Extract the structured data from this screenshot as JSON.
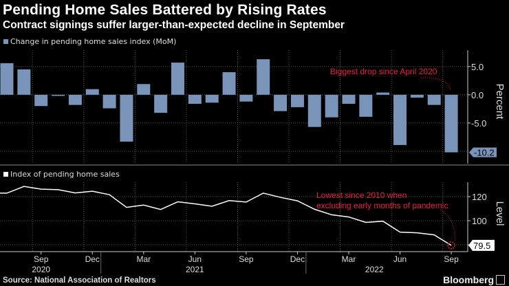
{
  "header": {
    "title": "Pending Home Sales Battered by Rising Rates",
    "subtitle": "Contract signings suffer larger-than-expected decline in September"
  },
  "footer": {
    "source": "Source: National Association of Realtors",
    "brand": "Bloomberg"
  },
  "colors": {
    "bar": "#7a93b8",
    "line": "#ffffff",
    "annotation": "#e3213f",
    "grid": "#555555"
  },
  "chart_data": [
    {
      "type": "bar",
      "title": "Change in pending home sales index (MoM)",
      "ylabel": "Percent",
      "ylim": [
        -12.2,
        7.9
      ],
      "yticks": [
        5.0,
        0.0,
        -5.0
      ],
      "ytick_labels": [
        "5.0",
        "0.0",
        "-5.0"
      ],
      "categories": [
        "Jul 2020",
        "Aug 2020",
        "Sep 2020",
        "Oct 2020",
        "Nov 2020",
        "Dec 2020",
        "Jan 2021",
        "Feb 2021",
        "Mar 2021",
        "Apr 2021",
        "May 2021",
        "Jun 2021",
        "Jul 2021",
        "Aug 2021",
        "Sep 2021",
        "Oct 2021",
        "Nov 2021",
        "Dec 2021",
        "Jan 2022",
        "Feb 2022",
        "Mar 2022",
        "Apr 2022",
        "May 2022",
        "Jun 2022",
        "Jul 2022",
        "Aug 2022",
        "Sep 2022"
      ],
      "values": [
        5.6,
        4.5,
        -2.0,
        -0.2,
        -1.8,
        1.0,
        -2.4,
        -8.3,
        1.9,
        -3.2,
        5.7,
        -1.6,
        -1.4,
        4.0,
        -1.2,
        6.3,
        -2.9,
        -2.2,
        -5.7,
        -4.0,
        -1.6,
        -3.9,
        0.4,
        -8.9,
        -0.5,
        -1.8,
        -10.2
      ],
      "last_value_label": "-10.2",
      "annotation": "Biggest drop since April 2020",
      "grid": true
    },
    {
      "type": "line",
      "title": "Index of pending home sales",
      "ylabel": "Level",
      "ylim": [
        76,
        132
      ],
      "yticks": [
        120,
        100,
        80
      ],
      "ytick_labels": [
        "120",
        "100",
        ""
      ],
      "values": [
        122.9,
        128.5,
        126.2,
        125.8,
        123.1,
        124.5,
        121.6,
        111.1,
        113.0,
        109.3,
        115.7,
        114.0,
        112.0,
        116.7,
        115.5,
        122.9,
        119.4,
        116.5,
        109.5,
        104.9,
        103.1,
        98.6,
        99.6,
        90.5,
        89.9,
        88.2,
        79.5
      ],
      "last_value_label": "79.5",
      "annotation": [
        "Lowest since 2010 when",
        "excluding early months of pandemic"
      ],
      "x_ticks": [
        {
          "index": 2,
          "label": "Sep"
        },
        {
          "index": 5,
          "label": "Dec"
        },
        {
          "index": 8,
          "label": "Mar"
        },
        {
          "index": 11,
          "label": "Jun"
        },
        {
          "index": 14,
          "label": "Sep"
        },
        {
          "index": 17,
          "label": "Dec"
        },
        {
          "index": 20,
          "label": "Mar"
        },
        {
          "index": 23,
          "label": "Jun"
        },
        {
          "index": 26,
          "label": "Sep"
        }
      ],
      "years": [
        {
          "index": 2,
          "label": "2020"
        },
        {
          "index": 11,
          "label": "2021"
        },
        {
          "index": 21.5,
          "label": "2022"
        }
      ],
      "grid": true
    }
  ]
}
